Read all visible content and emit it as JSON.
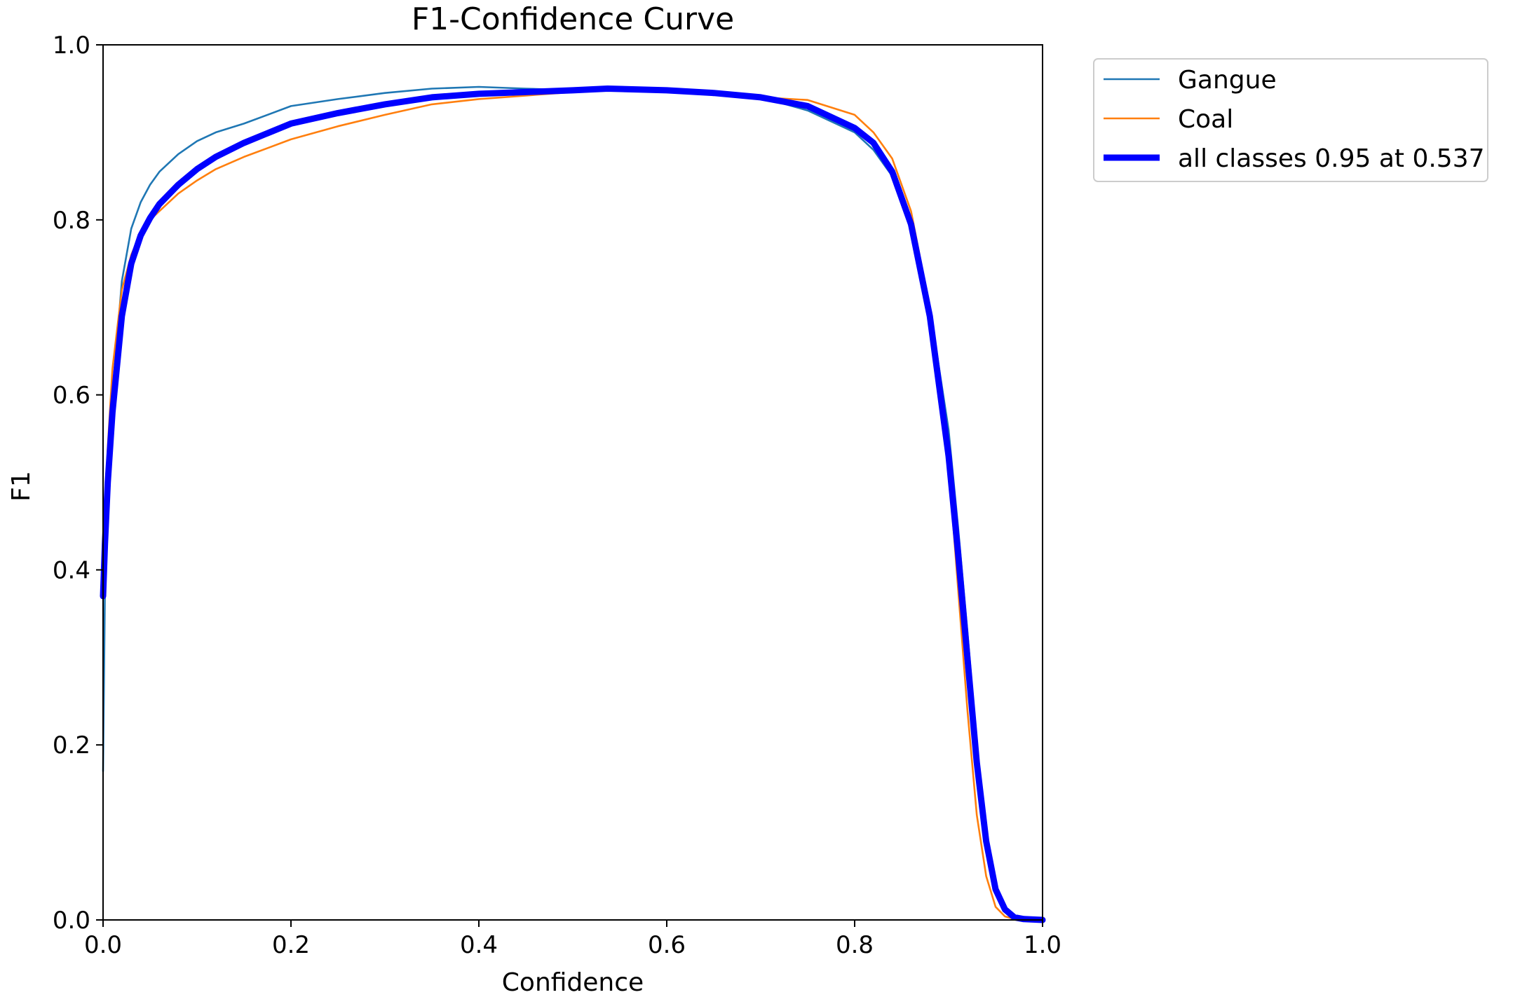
{
  "chart_data": {
    "type": "line",
    "title": "F1-Confidence Curve",
    "xlabel": "Confidence",
    "ylabel": "F1",
    "xlim": [
      0,
      1
    ],
    "ylim": [
      0,
      1
    ],
    "xticks": [
      "0.0",
      "0.2",
      "0.4",
      "0.6",
      "0.8",
      "1.0"
    ],
    "yticks": [
      "0.0",
      "0.2",
      "0.4",
      "0.6",
      "0.8",
      "1.0"
    ],
    "grid": false,
    "legend_position": "outside-top-right",
    "series": [
      {
        "name": "Gangue",
        "color": "#1f77b4",
        "x": [
          0.0,
          0.002,
          0.005,
          0.01,
          0.02,
          0.03,
          0.04,
          0.05,
          0.06,
          0.08,
          0.1,
          0.12,
          0.15,
          0.2,
          0.25,
          0.3,
          0.35,
          0.4,
          0.45,
          0.5,
          0.537,
          0.6,
          0.65,
          0.7,
          0.75,
          0.8,
          0.82,
          0.84,
          0.86,
          0.88,
          0.9,
          0.91,
          0.92,
          0.93,
          0.94,
          0.95,
          0.96,
          0.97,
          0.98,
          1.0
        ],
        "y": [
          0.17,
          0.38,
          0.5,
          0.6,
          0.73,
          0.79,
          0.82,
          0.84,
          0.855,
          0.875,
          0.89,
          0.9,
          0.91,
          0.93,
          0.938,
          0.945,
          0.95,
          0.952,
          0.95,
          0.948,
          0.95,
          0.948,
          0.945,
          0.94,
          0.925,
          0.9,
          0.88,
          0.85,
          0.79,
          0.7,
          0.56,
          0.45,
          0.33,
          0.2,
          0.1,
          0.04,
          0.012,
          0.004,
          0.001,
          0.0
        ]
      },
      {
        "name": "Coal",
        "color": "#ff7f0e",
        "x": [
          0.0,
          0.002,
          0.005,
          0.01,
          0.02,
          0.03,
          0.04,
          0.05,
          0.06,
          0.08,
          0.1,
          0.12,
          0.15,
          0.2,
          0.25,
          0.3,
          0.35,
          0.4,
          0.45,
          0.5,
          0.537,
          0.6,
          0.65,
          0.7,
          0.75,
          0.8,
          0.82,
          0.84,
          0.86,
          0.88,
          0.9,
          0.91,
          0.92,
          0.93,
          0.94,
          0.95,
          0.96,
          0.97,
          0.98,
          1.0
        ],
        "y": [
          0.37,
          0.46,
          0.54,
          0.63,
          0.72,
          0.76,
          0.785,
          0.8,
          0.81,
          0.83,
          0.845,
          0.858,
          0.872,
          0.892,
          0.907,
          0.92,
          0.932,
          0.938,
          0.942,
          0.946,
          0.95,
          0.948,
          0.945,
          0.94,
          0.937,
          0.92,
          0.9,
          0.87,
          0.81,
          0.7,
          0.52,
          0.38,
          0.24,
          0.12,
          0.05,
          0.015,
          0.004,
          0.001,
          0.0,
          0.0
        ]
      },
      {
        "name": "all classes 0.95 at 0.537",
        "color": "#0000ff",
        "x": [
          0.0,
          0.002,
          0.005,
          0.01,
          0.02,
          0.03,
          0.04,
          0.05,
          0.06,
          0.08,
          0.1,
          0.12,
          0.15,
          0.2,
          0.25,
          0.3,
          0.35,
          0.4,
          0.45,
          0.5,
          0.537,
          0.6,
          0.65,
          0.7,
          0.75,
          0.8,
          0.82,
          0.84,
          0.86,
          0.88,
          0.9,
          0.91,
          0.92,
          0.93,
          0.94,
          0.95,
          0.96,
          0.97,
          0.98,
          1.0
        ],
        "y": [
          0.37,
          0.43,
          0.5,
          0.58,
          0.69,
          0.75,
          0.782,
          0.802,
          0.818,
          0.84,
          0.858,
          0.872,
          0.888,
          0.91,
          0.922,
          0.932,
          0.94,
          0.944,
          0.946,
          0.948,
          0.95,
          0.948,
          0.945,
          0.94,
          0.93,
          0.905,
          0.888,
          0.855,
          0.795,
          0.69,
          0.53,
          0.42,
          0.3,
          0.18,
          0.09,
          0.035,
          0.012,
          0.003,
          0.001,
          0.0
        ]
      }
    ]
  }
}
